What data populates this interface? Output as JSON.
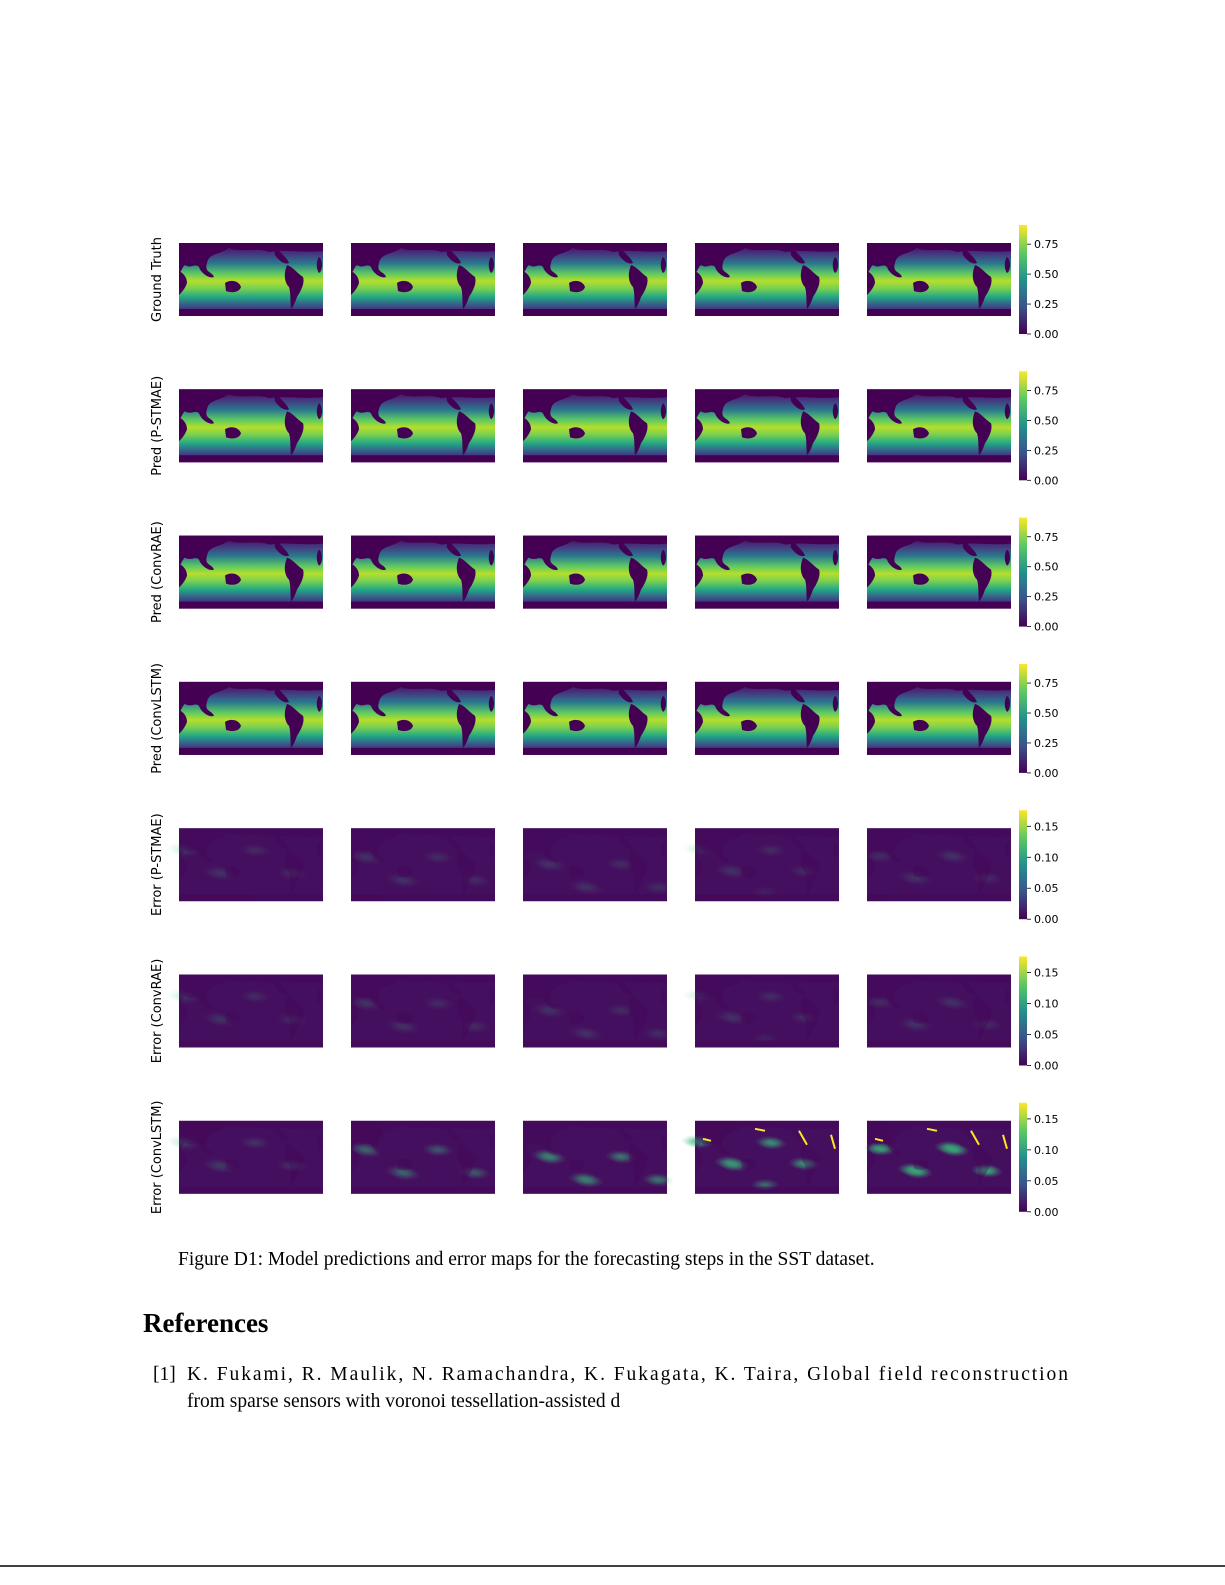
{
  "figure": {
    "rows": [
      {
        "label": "Ground Truth",
        "colorbar": {
          "range": [
            0,
            0.91
          ],
          "ticks": [
            {
              "value": 0,
              "label": "0.00"
            },
            {
              "value": 0.25,
              "label": "0.25"
            },
            {
              "value": 0.5,
              "label": "0.50"
            },
            {
              "value": 0.75,
              "label": "0.75"
            }
          ]
        }
      },
      {
        "label": "Pred (P-STMAE)",
        "colorbar": {
          "range": [
            0,
            0.91
          ],
          "ticks": [
            {
              "value": 0,
              "label": "0.00"
            },
            {
              "value": 0.25,
              "label": "0.25"
            },
            {
              "value": 0.5,
              "label": "0.50"
            },
            {
              "value": 0.75,
              "label": "0.75"
            }
          ]
        }
      },
      {
        "label": "Pred (ConvRAE)",
        "colorbar": {
          "range": [
            0,
            0.91
          ],
          "ticks": [
            {
              "value": 0,
              "label": "0.00"
            },
            {
              "value": 0.25,
              "label": "0.25"
            },
            {
              "value": 0.5,
              "label": "0.50"
            },
            {
              "value": 0.75,
              "label": "0.75"
            }
          ]
        }
      },
      {
        "label": "Pred (ConvLSTM)",
        "colorbar": {
          "range": [
            0,
            0.91
          ],
          "ticks": [
            {
              "value": 0,
              "label": "0.00"
            },
            {
              "value": 0.25,
              "label": "0.25"
            },
            {
              "value": 0.5,
              "label": "0.50"
            },
            {
              "value": 0.75,
              "label": "0.75"
            }
          ]
        }
      },
      {
        "label": "Error (P-STMAE)",
        "colorbar": {
          "range": [
            0,
            0.176
          ],
          "ticks": [
            {
              "value": 0,
              "label": "0.00"
            },
            {
              "value": 0.05,
              "label": "0.05"
            },
            {
              "value": 0.1,
              "label": "0.10"
            },
            {
              "value": 0.15,
              "label": "0.15"
            }
          ]
        }
      },
      {
        "label": "Error (ConvRAE)",
        "colorbar": {
          "range": [
            0,
            0.176
          ],
          "ticks": [
            {
              "value": 0,
              "label": "0.00"
            },
            {
              "value": 0.05,
              "label": "0.05"
            },
            {
              "value": 0.1,
              "label": "0.10"
            },
            {
              "value": 0.15,
              "label": "0.15"
            }
          ]
        }
      },
      {
        "label": "Error (ConvLSTM)",
        "colorbar": {
          "range": [
            0,
            0.176
          ],
          "ticks": [
            {
              "value": 0,
              "label": "0.00"
            },
            {
              "value": 0.05,
              "label": "0.05"
            },
            {
              "value": 0.1,
              "label": "0.10"
            },
            {
              "value": 0.15,
              "label": "0.15"
            }
          ]
        }
      }
    ],
    "caption": "Figure D1: Model predictions and error maps for the forecasting steps in the SST dataset."
  },
  "references": {
    "heading": "References",
    "items": [
      {
        "label": "[1]",
        "lines": [
          "K. Fukami, R. Maulik, N. Ramachandra, K. Fukagata, K. Taira, Global field reconstruction",
          "from sparse sensors with voronoi tessellation-assisted d"
        ]
      }
    ]
  }
}
